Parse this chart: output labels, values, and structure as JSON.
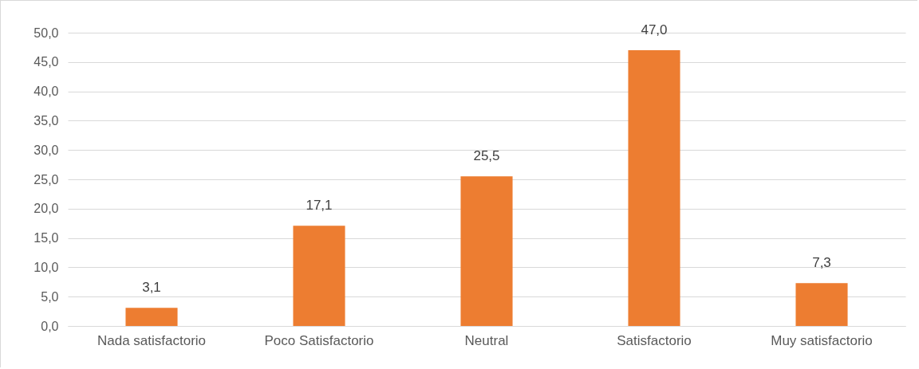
{
  "chart_data": {
    "type": "bar",
    "categories": [
      "Nada satisfactorio",
      "Poco Satisfactorio",
      "Neutral",
      "Satisfactorio",
      "Muy satisfactorio"
    ],
    "values": [
      3.1,
      17.1,
      25.5,
      47.0,
      7.3
    ],
    "value_labels": [
      "3,1",
      "17,1",
      "25,5",
      "47,0",
      "7,3"
    ],
    "color": "#ed7d31",
    "ylim": [
      0,
      50
    ],
    "yticks": [
      {
        "value": 0,
        "label": "0,0"
      },
      {
        "value": 5,
        "label": "5,0"
      },
      {
        "value": 10,
        "label": "10,0"
      },
      {
        "value": 15,
        "label": "15,0"
      },
      {
        "value": 20,
        "label": "20,0"
      },
      {
        "value": 25,
        "label": "25,0"
      },
      {
        "value": 30,
        "label": "30,0"
      },
      {
        "value": 35,
        "label": "35,0"
      },
      {
        "value": 40,
        "label": "40,0"
      },
      {
        "value": 45,
        "label": "45,0"
      },
      {
        "value": 50,
        "label": "50,0"
      }
    ],
    "grid": "y"
  }
}
